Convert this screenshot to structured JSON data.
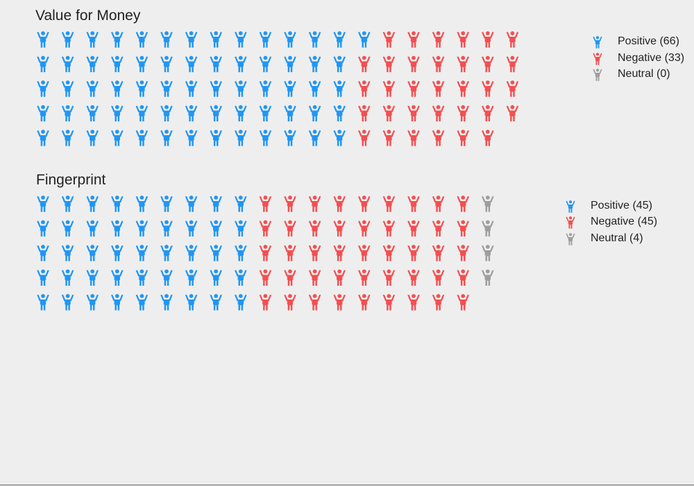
{
  "chart_data": [
    {
      "type": "waffle",
      "title": "Value for Money",
      "rows": 5,
      "series": [
        {
          "name": "Positive",
          "count": 66,
          "color": "#2196f3",
          "legend_label": "Positive (66)"
        },
        {
          "name": "Negative",
          "count": 33,
          "color": "#f44f51",
          "legend_label": "Negative (33)"
        },
        {
          "name": "Neutral",
          "count": 0,
          "color": "#9e9e9e",
          "legend_label": "Neutral (0)"
        }
      ],
      "legend_position": "right",
      "grid": false
    },
    {
      "type": "waffle",
      "title": "Fingerprint",
      "rows": 5,
      "series": [
        {
          "name": "Positive",
          "count": 45,
          "color": "#2196f3",
          "legend_label": "Positive (45)"
        },
        {
          "name": "Negative",
          "count": 45,
          "color": "#f44f51",
          "legend_label": "Negative (45)"
        },
        {
          "name": "Neutral",
          "count": 4,
          "color": "#9e9e9e",
          "legend_label": "Neutral (4)"
        }
      ],
      "legend_position": "right",
      "grid": false
    }
  ],
  "icon": "person-arms-raised-icon",
  "background_color": "#eeeeee"
}
